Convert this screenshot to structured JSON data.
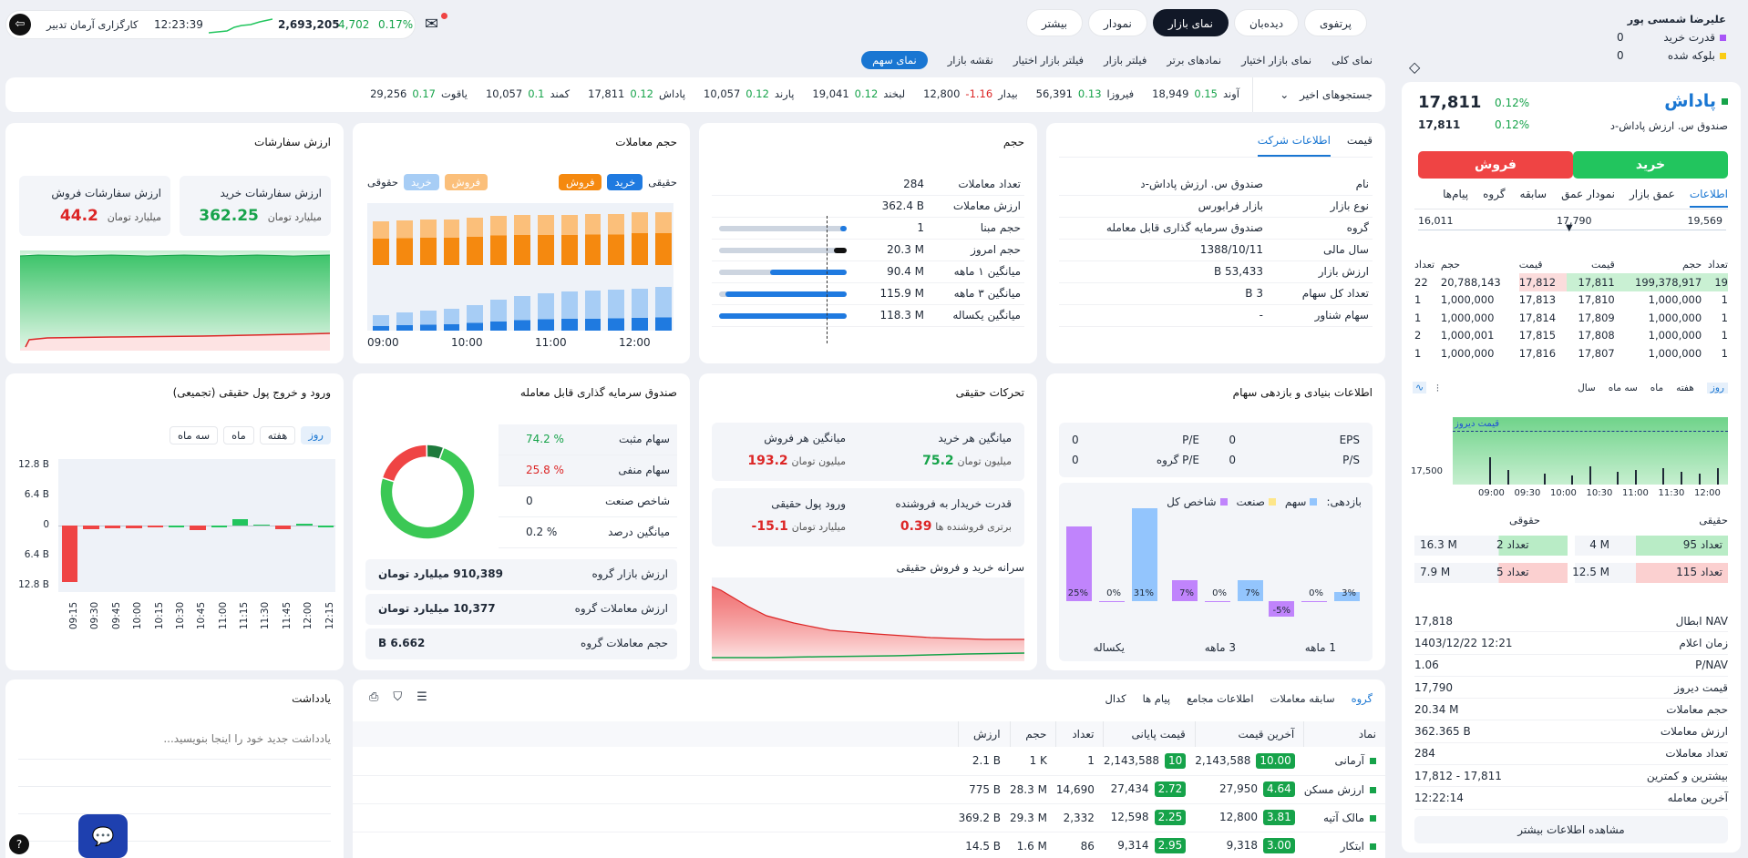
{
  "user": {
    "name": "علیرضا شمسی پور",
    "buy_power_label": "قدرت خرید",
    "buy_power": "0",
    "blocked_label": "بلوکه شده",
    "blocked": "0"
  },
  "nav": {
    "tabs": [
      "پرتفوی",
      "دیده‌بان",
      "نمای بازار",
      "نمودار",
      "بیشتر"
    ],
    "active": "نمای بازار",
    "subtabs": [
      "نمای کلی",
      "نمای بازار اختیار",
      "نمادهای برتر",
      "فیلتر بازار",
      "فیلتر بازار اختیار",
      "نقشه بازار",
      "نمای سهم"
    ],
    "sub_active": "نمای سهم"
  },
  "broker": {
    "name": "کارگزاری آرمان تدبیر",
    "time": "12:23:39",
    "index": "2,693,205",
    "change": "4,702",
    "percent": "0.17%"
  },
  "recent": {
    "label": "جستجوهای اخیر",
    "items": [
      {
        "name": "آوند",
        "pct": "0.15",
        "price": "18,949",
        "pos": true
      },
      {
        "name": "فیروزا",
        "pct": "0.13",
        "price": "56,391",
        "pos": true
      },
      {
        "name": "بیدار",
        "pct": "-1.16",
        "price": "12,800",
        "pos": false
      },
      {
        "name": "لبخند",
        "pct": "0.12",
        "price": "19,041",
        "pos": true
      },
      {
        "name": "پارند",
        "pct": "0.12",
        "price": "10,057",
        "pos": true
      },
      {
        "name": "پاداش",
        "pct": "0.12",
        "price": "17,811",
        "pos": true
      },
      {
        "name": "کمند",
        "pct": "0.1",
        "price": "10,057",
        "pos": true
      },
      {
        "name": "یاقوت",
        "pct": "0.17",
        "price": "29,256",
        "pos": true
      }
    ]
  },
  "symbol": {
    "name": "پاداش",
    "full": "صندوق س. ارزش پاداش-د",
    "price": "17,811",
    "pct": "0.12%",
    "price2": "17,811",
    "pct2": "0.12%",
    "buy": "خرید",
    "sell": "فروش",
    "tabs": [
      "اطلاعات",
      "عمق بازار",
      "نمودار عمق",
      "سابقه",
      "گروه",
      "پیام‌ها"
    ],
    "range_low": "16,011",
    "range_mid": "17,790",
    "range_high": "19,569"
  },
  "orderbook": {
    "headers": [
      "تعداد",
      "حجم",
      "قیمت",
      "قیمت",
      "حجم",
      "تعداد"
    ],
    "rows": [
      [
        "19",
        "199,378,917",
        "17,811",
        "17,812",
        "20,788,143",
        "22"
      ],
      [
        "1",
        "1,000,000",
        "17,810",
        "17,813",
        "1,000,000",
        "1"
      ],
      [
        "1",
        "1,000,000",
        "17,809",
        "17,814",
        "1,000,000",
        "1"
      ],
      [
        "1",
        "1,000,000",
        "17,808",
        "17,815",
        "1,000,001",
        "2"
      ],
      [
        "1",
        "1,000,000",
        "17,807",
        "17,816",
        "1,000,000",
        "1"
      ]
    ]
  },
  "mini_chart": {
    "tabs": [
      "روز",
      "هفته",
      "ماه",
      "سه ماه",
      "سال"
    ],
    "label": "قیمت دیروز",
    "y": "17,500",
    "x": [
      "09:00",
      "09:30",
      "10:00",
      "10:30",
      "11:00",
      "11:30",
      "12:00"
    ]
  },
  "person": {
    "real": "حقیقی",
    "legal": "حقوقی",
    "rows": [
      {
        "count_label": "تعداد 95",
        "vol": "4 M",
        "count2": "تعداد 2",
        "vol2": "16.3 M"
      },
      {
        "count_label": "تعداد 115",
        "vol": "12.5 M",
        "count2": "تعداد 5",
        "vol2": "7.9 M"
      }
    ]
  },
  "stats": [
    [
      "NAV ابطال",
      "17,818"
    ],
    [
      "زمان اعلام",
      "1403/12/22 12:21"
    ],
    [
      "P/NAV",
      "1.06"
    ],
    [
      "قیمت دیروز",
      "17,790"
    ],
    [
      "حجم معاملات",
      "20.34 M"
    ],
    [
      "ارزش معاملات",
      "362.365 B"
    ],
    [
      "تعداد معاملات",
      "284"
    ],
    [
      "بیشترین و کمترین",
      "17,812 - 17,811"
    ],
    [
      "آخرین معامله",
      "12:22:14"
    ]
  ],
  "more_info": "مشاهده اطلاعات بیشتر",
  "company": {
    "tabs": [
      "قیمت",
      "اطلاعات شرکت"
    ],
    "rows": [
      [
        "نام",
        "صندوق س. ارزش پاداش-د"
      ],
      [
        "نوع بازار",
        "بازار فرابورس"
      ],
      [
        "گروه",
        "صندوق سرمایه گذاری قابل معامله"
      ],
      [
        "سال مالی",
        "1388/10/11"
      ],
      [
        "ارزش بازار",
        "53,433 B"
      ],
      [
        "تعداد کل سهام",
        "3 B"
      ],
      [
        "سهام شناور",
        "-"
      ]
    ]
  },
  "volume": {
    "title": "حجم",
    "rows": [
      [
        "تعداد معاملات",
        "284"
      ],
      [
        "ارزش معاملات",
        "362.4 B"
      ],
      [
        "حجم مبنا",
        "1"
      ],
      [
        "حجم امروز",
        "20.3 M"
      ],
      [
        "میانگین ۱ ماهه",
        "90.4 M"
      ],
      [
        "میانگین ۳ ماهه",
        "115.9 M"
      ],
      [
        "میانگین یکساله",
        "118.3 M"
      ]
    ],
    "bars": [
      0,
      0,
      0.05,
      0.1,
      0.6,
      0.95,
      1
    ]
  },
  "trades": {
    "title": "حجم معاملات",
    "real": "حقیقی",
    "legal": "حقوقی",
    "buy": "خرید",
    "sell": "فروش",
    "x": [
      "09:00",
      "10:00",
      "11:00",
      "12:00"
    ],
    "buy_frac": [
      0.3,
      0.34,
      0.38,
      0.42,
      0.48,
      0.58,
      0.66,
      0.7,
      0.74,
      0.76,
      0.78,
      0.8,
      0.82
    ],
    "sell_frac": [
      0.8,
      0.82,
      0.84,
      0.84,
      0.86,
      0.9,
      0.92,
      0.92,
      0.92,
      0.94,
      0.94,
      0.96,
      0.96
    ]
  },
  "orders": {
    "title": "ارزش سفارشات",
    "buy_label": "ارزش سفارشات خرید",
    "buy_val": "362.25",
    "sell_label": "ارزش سفارشات فروش",
    "sell_val": "44.2",
    "unit": "میلیارد تومان"
  },
  "fundamental": {
    "title": "اطلاعات بنیادی و بازدهی سهام",
    "eps": "EPS",
    "eps_v": "0",
    "pe": "P/E",
    "pe_v": "0",
    "ps": "P/S",
    "ps_v": "0",
    "pe_g": "P/E گروه",
    "pe_g_v": "0",
    "ret_label": "بازدهی:",
    "leg": [
      "سهم",
      "صنعت",
      "شاخص کل"
    ],
    "periods": [
      "1 ماهه",
      "3 ماهه",
      "یکساله"
    ],
    "values": [
      {
        "s": 3,
        "i": -5,
        "t": 0
      },
      {
        "s": 7,
        "i": 7,
        "t": 0
      },
      {
        "s": 31,
        "i": 25,
        "t": 0
      }
    ]
  },
  "movements": {
    "title": "تحرکات حقیقی",
    "avg_buy": "میانگین هر خرید",
    "avg_buy_v": "75.2",
    "avg_sell": "میانگین هر فروش",
    "avg_sell_v": "193.2",
    "unit_m": "میلیون تومان",
    "power": "قدرت خریدار به فروشنده",
    "power_v": "0.39",
    "power_sub": "برتری فروشنده ها",
    "inflow": "ورود پول حقیقی",
    "inflow_v": "-15.1",
    "unit_b": "میلیارد تومان",
    "sarane": "سرانه خرید و فروش حقیقی"
  },
  "fund": {
    "title": "صندوق سرمایه گذاری قابل معامله",
    "rows": [
      [
        "سهام مثبت",
        "74.2 %"
      ],
      [
        "سهام منفی",
        "25.8 %"
      ],
      [
        "شاخص صنعت",
        "0"
      ],
      [
        "میانگین درصد",
        "0.2 %"
      ]
    ],
    "rows2": [
      [
        "ارزش بازار گروه",
        "910,389 میلیارد تومان"
      ],
      [
        "ارزش معاملات گروه",
        "10,377 میلیارد تومان"
      ],
      [
        "حجم معاملات گروه",
        "6.662 B"
      ]
    ],
    "donut": [
      74.2,
      20,
      5.8
    ]
  },
  "flow": {
    "title": "ورود و خروج پول حقیقی (تجمیعی)",
    "tabs": [
      "روز",
      "هفته",
      "ماه",
      "سه ماه"
    ],
    "y": [
      "12.8 B",
      "6.4 B",
      "0",
      "6.4 B",
      "12.8 B"
    ],
    "x": [
      "09:15",
      "09:30",
      "09:45",
      "10:00",
      "10:15",
      "10:30",
      "10:45",
      "11:00",
      "11:15",
      "11:30",
      "11:45",
      "12:00",
      "12:15"
    ],
    "values": [
      -12,
      -0.8,
      -0.6,
      -0.5,
      -0.3,
      0,
      -1,
      0,
      1.4,
      0.2,
      -0.8,
      0.4,
      0
    ]
  },
  "notes": {
    "title": "یادداشت",
    "placeholder": "یادداشت جدید خود را اینجا بنویسید..."
  },
  "group": {
    "tabs": [
      "گروه",
      "سابقه معاملات",
      "اطلاعات مجامع",
      "پیام ها",
      "کدال"
    ],
    "headers": [
      "نماد",
      "آخرین قیمت",
      "قیمت پایانی",
      "تعداد",
      "حجم",
      "ارزش"
    ],
    "rows": [
      [
        "آرمانی",
        "2,143,588",
        "10.00",
        "2,143,588",
        "10",
        "1",
        "1 K",
        "2.1 B"
      ],
      [
        "ارزش مسکن",
        "27,950",
        "4.64",
        "27,434",
        "2.72",
        "14,690",
        "28.3 M",
        "775 B"
      ],
      [
        "مالک آتیه",
        "12,800",
        "3.81",
        "12,598",
        "2.25",
        "2,332",
        "29.3 M",
        "369.2 B"
      ],
      [
        "ابتکار",
        "9,318",
        "3.00",
        "9,314",
        "2.95",
        "86",
        "1.6 M",
        "14.5 B"
      ]
    ]
  },
  "colors": {
    "green": "#16a34a",
    "red": "#dc2626",
    "blue": "#1976d2",
    "orange": "#f5890f"
  }
}
